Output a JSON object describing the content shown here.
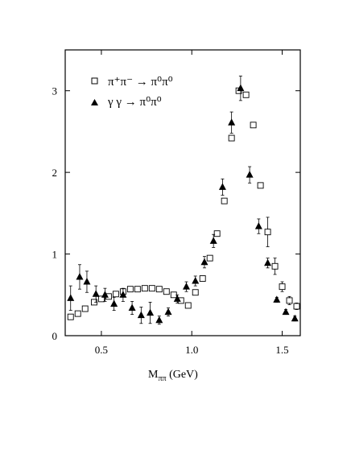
{
  "chart_data": {
    "type": "scatter",
    "title": "",
    "xlabel": "M",
    "xlabel_sub": "ππ",
    "xlabel_unit": " (GeV)",
    "ylabel": "",
    "xlim": [
      0.3,
      1.6
    ],
    "ylim": [
      0,
      3.5
    ],
    "x_ticks": [
      0.5,
      1.0,
      1.5
    ],
    "x_tick_labels": [
      "0.5",
      "1.0",
      "1.5"
    ],
    "y_ticks": [
      0,
      1,
      2,
      3
    ],
    "y_tick_labels": [
      "0",
      "1",
      "2",
      "3"
    ],
    "grid": false,
    "legend_position": "top-left",
    "legend": [
      {
        "symbol": "open-square",
        "label": "π⁺π⁻ → π⁰π⁰"
      },
      {
        "symbol": "filled-triangle",
        "label": "γ γ → π⁰π⁰"
      }
    ],
    "series": [
      {
        "name": "π⁺π⁻ → π⁰π⁰",
        "marker": "open-square",
        "points": [
          {
            "x": 0.33,
            "y": 0.23
          },
          {
            "x": 0.37,
            "y": 0.27
          },
          {
            "x": 0.41,
            "y": 0.33
          },
          {
            "x": 0.46,
            "y": 0.41
          },
          {
            "x": 0.5,
            "y": 0.45
          },
          {
            "x": 0.54,
            "y": 0.48
          },
          {
            "x": 0.58,
            "y": 0.51
          },
          {
            "x": 0.62,
            "y": 0.54
          },
          {
            "x": 0.66,
            "y": 0.57
          },
          {
            "x": 0.7,
            "y": 0.57
          },
          {
            "x": 0.74,
            "y": 0.58
          },
          {
            "x": 0.78,
            "y": 0.58
          },
          {
            "x": 0.82,
            "y": 0.57
          },
          {
            "x": 0.86,
            "y": 0.54
          },
          {
            "x": 0.9,
            "y": 0.5
          },
          {
            "x": 0.94,
            "y": 0.43
          },
          {
            "x": 0.98,
            "y": 0.37
          },
          {
            "x": 1.02,
            "y": 0.53
          },
          {
            "x": 1.06,
            "y": 0.7
          },
          {
            "x": 1.1,
            "y": 0.95
          },
          {
            "x": 1.14,
            "y": 1.25
          },
          {
            "x": 1.18,
            "y": 1.65
          },
          {
            "x": 1.22,
            "y": 2.42
          },
          {
            "x": 1.26,
            "y": 3.0
          },
          {
            "x": 1.3,
            "y": 2.95
          },
          {
            "x": 1.34,
            "y": 2.58
          },
          {
            "x": 1.38,
            "y": 1.84
          },
          {
            "x": 1.42,
            "y": 1.27,
            "err": 0.18
          },
          {
            "x": 1.46,
            "y": 0.85,
            "err": 0.1
          },
          {
            "x": 1.5,
            "y": 0.6,
            "err": 0.06
          },
          {
            "x": 1.54,
            "y": 0.43,
            "err": 0.05
          },
          {
            "x": 1.58,
            "y": 0.36,
            "err": 0.04
          }
        ]
      },
      {
        "name": "γ γ → π⁰π⁰",
        "marker": "filled-triangle",
        "points": [
          {
            "x": 0.33,
            "y": 0.46,
            "err": 0.15
          },
          {
            "x": 0.38,
            "y": 0.72,
            "err": 0.15
          },
          {
            "x": 0.42,
            "y": 0.66,
            "err": 0.13
          },
          {
            "x": 0.47,
            "y": 0.51,
            "err": 0.1
          },
          {
            "x": 0.52,
            "y": 0.5,
            "err": 0.08
          },
          {
            "x": 0.57,
            "y": 0.39,
            "err": 0.08
          },
          {
            "x": 0.62,
            "y": 0.5,
            "err": 0.08
          },
          {
            "x": 0.67,
            "y": 0.34,
            "err": 0.08
          },
          {
            "x": 0.72,
            "y": 0.25,
            "err": 0.1
          },
          {
            "x": 0.77,
            "y": 0.28,
            "err": 0.13
          },
          {
            "x": 0.82,
            "y": 0.19,
            "err": 0.05
          },
          {
            "x": 0.87,
            "y": 0.29,
            "err": 0.05
          },
          {
            "x": 0.92,
            "y": 0.45,
            "err": 0.05
          },
          {
            "x": 0.97,
            "y": 0.6,
            "err": 0.06
          },
          {
            "x": 1.02,
            "y": 0.67,
            "err": 0.06
          },
          {
            "x": 1.07,
            "y": 0.9,
            "err": 0.07
          },
          {
            "x": 1.12,
            "y": 1.16,
            "err": 0.08
          },
          {
            "x": 1.17,
            "y": 1.82,
            "err": 0.1
          },
          {
            "x": 1.22,
            "y": 2.61,
            "err": 0.13
          },
          {
            "x": 1.27,
            "y": 3.03,
            "err": 0.15
          },
          {
            "x": 1.32,
            "y": 1.97,
            "err": 0.1
          },
          {
            "x": 1.37,
            "y": 1.34,
            "err": 0.09
          },
          {
            "x": 1.42,
            "y": 0.89,
            "err": 0.06
          },
          {
            "x": 1.47,
            "y": 0.44,
            "err": 0.03
          },
          {
            "x": 1.52,
            "y": 0.29,
            "err": 0.03
          },
          {
            "x": 1.57,
            "y": 0.21,
            "err": 0.03
          }
        ]
      }
    ]
  }
}
